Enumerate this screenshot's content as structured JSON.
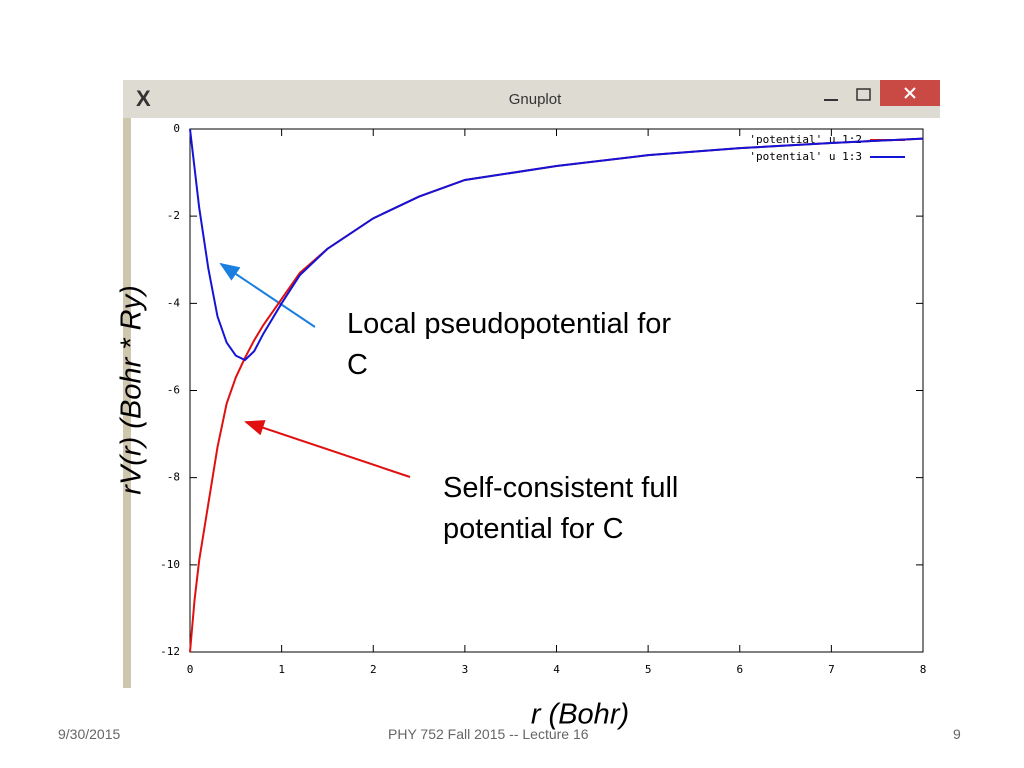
{
  "window_title": "Gnuplot",
  "chart_data": {
    "type": "line",
    "x": [
      0,
      0.05,
      0.1,
      0.2,
      0.3,
      0.4,
      0.5,
      0.6,
      0.7,
      0.8,
      1.0,
      1.2,
      1.5,
      2,
      2.5,
      3,
      4,
      5,
      6,
      7,
      8
    ],
    "series": [
      {
        "name": "'potential' u 1:2",
        "color": "#e01010",
        "values": [
          -12,
          -10.8,
          -9.9,
          -8.6,
          -7.3,
          -6.3,
          -5.7,
          -5.25,
          -4.85,
          -4.5,
          -3.9,
          -3.3,
          -2.75,
          -2.05,
          -1.55,
          -1.17,
          -0.85,
          -0.6,
          -0.44,
          -0.32,
          -0.22
        ]
      },
      {
        "name": "'potential' u 1:3",
        "color": "#1414d8",
        "values": [
          0,
          -0.9,
          -1.8,
          -3.2,
          -4.3,
          -4.9,
          -5.2,
          -5.3,
          -5.1,
          -4.7,
          -4.0,
          -3.35,
          -2.75,
          -2.05,
          -1.55,
          -1.17,
          -0.85,
          -0.6,
          -0.44,
          -0.32,
          -0.22
        ]
      }
    ],
    "xlim": [
      0,
      8
    ],
    "xticks": [
      0,
      1,
      2,
      3,
      4,
      5,
      6,
      7,
      8
    ],
    "ylim": [
      -12,
      0
    ],
    "yticks": [
      0,
      -2,
      -4,
      -6,
      -8,
      -10,
      -12
    ],
    "xlabel": "r (Bohr)",
    "ylabel": "rV(r)  (Bohr * Ry)",
    "legend": "top-right",
    "annotations": [
      "Local pseudopotential for C",
      "Self-consistent full potential for C"
    ]
  },
  "footer": {
    "date": "9/30/2015",
    "course": "PHY 752  Fall 2015 -- Lecture 16",
    "page": "9"
  }
}
